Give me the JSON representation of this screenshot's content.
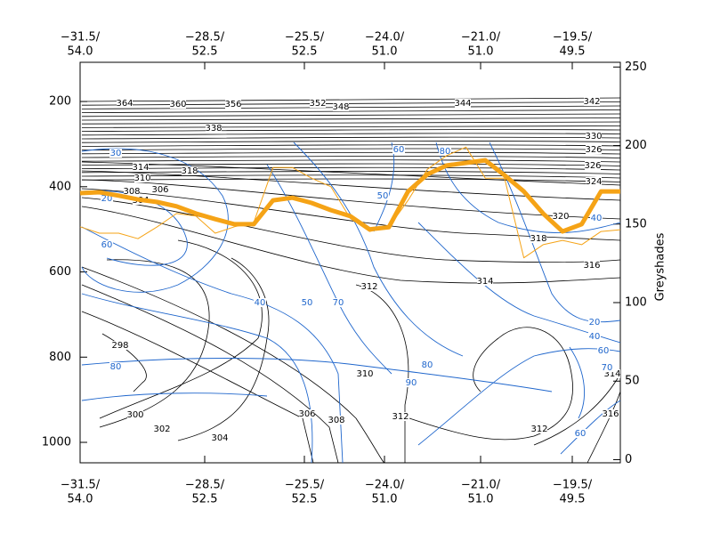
{
  "chart_data": {
    "type": "line",
    "y_label": "Greyshades",
    "x_tick_labels": [
      [
        "−31.5/",
        "54.0"
      ],
      [
        "−28.5/",
        "52.5"
      ],
      [
        "−25.5/",
        "52.5"
      ],
      [
        "−24.0/",
        "51.0"
      ],
      [
        "−21.0/",
        "51.0"
      ],
      [
        "−19.5/",
        "49.5"
      ]
    ],
    "ylim": [
      1048,
      108
    ],
    "yticks": [
      200,
      400,
      600,
      800,
      1000
    ],
    "y2lim": [
      -2,
      253
    ],
    "y2ticks": [
      0,
      50,
      100,
      150,
      200,
      250
    ],
    "series": [
      {
        "color": "#f5a316",
        "values": [
          415,
          413,
          421,
          430,
          436,
          446,
          463,
          476,
          488,
          488,
          432,
          426,
          438,
          455,
          469,
          500,
          495,
          411,
          371,
          350,
          344,
          338,
          373,
          411,
          463,
          505,
          488,
          411,
          411
        ]
      },
      {
        "color": "#f5a316",
        "values": [
          494,
          509,
          509,
          522,
          494,
          463,
          469,
          509,
          494,
          484,
          355,
          355,
          380,
          400,
          474,
          505,
          495,
          432,
          359,
          327,
          307,
          380,
          380,
          567,
          536,
          526,
          536,
          505,
          501
        ]
      }
    ],
    "isentropes": {
      "color": "#000000",
      "labels": [
        364,
        360,
        356,
        352,
        348,
        344,
        342,
        338,
        330,
        326,
        326,
        324,
        318,
        314,
        310,
        308,
        306,
        304,
        320,
        318,
        316,
        314,
        312,
        310,
        298,
        300,
        302,
        304,
        306,
        308,
        312,
        312,
        316,
        314
      ]
    },
    "humidity": {
      "color": "#1f66cc",
      "labels": [
        30,
        20,
        60,
        40,
        50,
        70,
        60,
        50,
        80,
        80,
        80,
        90,
        40,
        20,
        40,
        60,
        70,
        60
      ]
    }
  }
}
